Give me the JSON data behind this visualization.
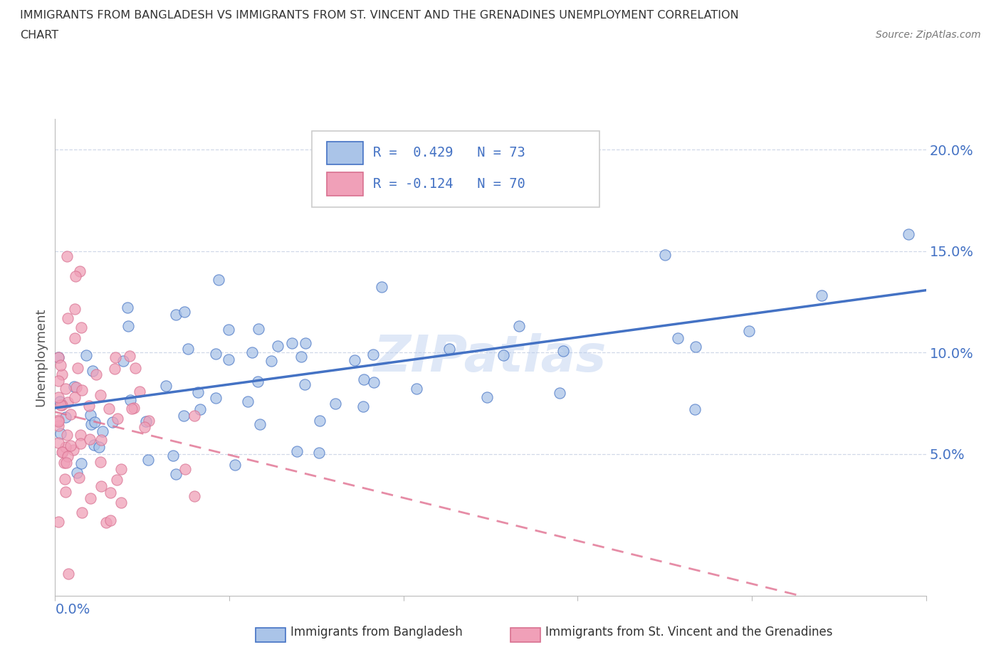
{
  "title_line1": "IMMIGRANTS FROM BANGLADESH VS IMMIGRANTS FROM ST. VINCENT AND THE GRENADINES UNEMPLOYMENT CORRELATION",
  "title_line2": "CHART",
  "source": "Source: ZipAtlas.com",
  "ylabel": "Unemployment",
  "y_ticks": [
    0.05,
    0.1,
    0.15,
    0.2
  ],
  "y_tick_labels": [
    "5.0%",
    "10.0%",
    "15.0%",
    "20.0%"
  ],
  "xlim": [
    0.0,
    0.25
  ],
  "ylim": [
    -0.02,
    0.215
  ],
  "watermark": "ZIPatlas",
  "color_bangladesh": "#aac4e8",
  "color_svg": "#f0a0b8",
  "color_edge_bangladesh": "#4472c4",
  "color_edge_svg": "#d87090",
  "color_line_bangladesh": "#4472c4",
  "color_line_svg": "#e07090",
  "legend_label1": "Immigrants from Bangladesh",
  "legend_label2": "Immigrants from St. Vincent and the Grenadines"
}
